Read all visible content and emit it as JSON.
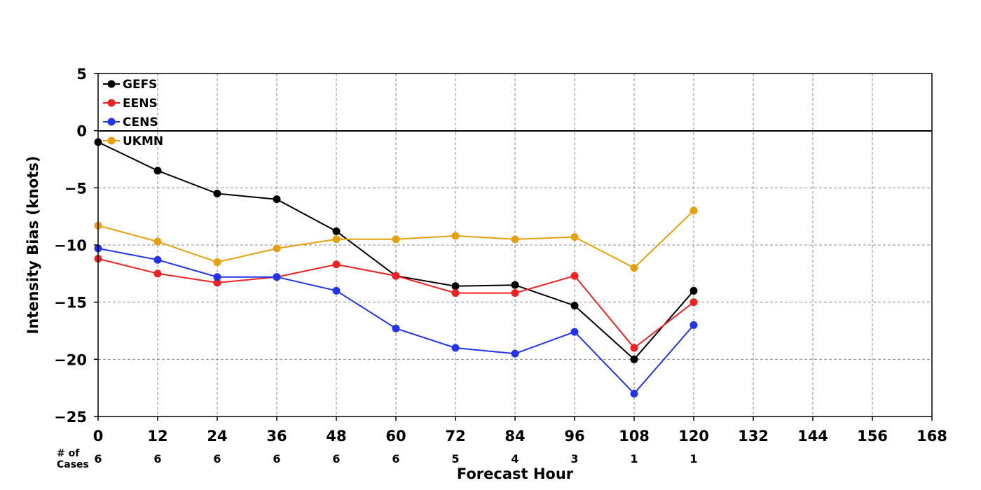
{
  "chart_data": {
    "type": "line",
    "xlabel": "Forecast Hour",
    "ylabel": "Intensity Bias (knots)",
    "xlim": [
      0,
      168
    ],
    "ylim": [
      -25,
      5
    ],
    "x_ticks": [
      0,
      12,
      24,
      36,
      48,
      60,
      72,
      84,
      96,
      108,
      120,
      132,
      144,
      156,
      168
    ],
    "y_ticks": [
      5,
      0,
      -5,
      -10,
      -15,
      -20,
      -25
    ],
    "y_tick_labels": [
      "5",
      "0",
      "−5",
      "−10",
      "−15",
      "−20",
      "−25"
    ],
    "grid": true,
    "zero_line": true,
    "legend_position": "top-left",
    "x": [
      0,
      12,
      24,
      36,
      48,
      60,
      72,
      84,
      96,
      108,
      120
    ],
    "series": [
      {
        "name": "GEFS",
        "color": "#000000",
        "values": [
          -1.0,
          -3.5,
          -5.5,
          -6.0,
          -8.8,
          -12.7,
          -13.6,
          -13.5,
          -15.3,
          -20.0,
          -14.0
        ]
      },
      {
        "name": "EENS",
        "color": "#ee2222",
        "values": [
          -11.2,
          -12.5,
          -13.3,
          -12.8,
          -11.7,
          -12.7,
          -14.2,
          -14.2,
          -12.7,
          -19.0,
          -15.0
        ]
      },
      {
        "name": "CENS",
        "color": "#2233ee",
        "values": [
          -10.3,
          -11.3,
          -12.8,
          -12.8,
          -14.0,
          -17.3,
          -19.0,
          -19.5,
          -17.6,
          -23.0,
          -17.0
        ]
      },
      {
        "name": "UKMN",
        "color": "#e6a00c",
        "values": [
          -8.3,
          -9.7,
          -11.5,
          -10.3,
          -9.5,
          -9.5,
          -9.2,
          -9.5,
          -9.3,
          -12.0,
          -7.0
        ]
      }
    ],
    "cases": {
      "label_line1": "# of",
      "label_line2": "Cases",
      "values": [
        "6",
        "6",
        "6",
        "6",
        "6",
        "6",
        "5",
        "4",
        "3",
        "1",
        "1"
      ]
    }
  }
}
